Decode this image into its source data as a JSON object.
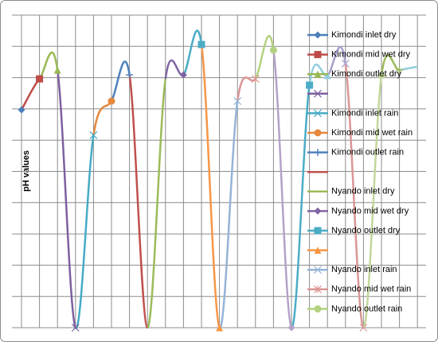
{
  "chart_data": {
    "type": "line",
    "smooth": true,
    "y_label": "pH values",
    "categories": [
      null,
      null,
      null,
      null,
      null,
      null,
      null,
      null,
      null,
      null,
      null,
      null,
      null,
      null,
      null,
      null,
      null,
      null,
      null,
      null,
      null,
      null,
      null
    ],
    "values": [
      6.97,
      7.96,
      8.24,
      0,
      6.16,
      7.25,
      8.09,
      0,
      7.96,
      8.09,
      9.06,
      0,
      7.25,
      7.96,
      8.88,
      0,
      7.76,
      8.07,
      8.45,
      0,
      8.07,
      8.24,
      8.35
    ],
    "point_colors": [
      "#4a7ebb",
      "#be4b48",
      "#98b954",
      "#7d60a0",
      "#46aac5",
      "#e4883f",
      "#4f81bd",
      "#c0504d",
      "#9bbb59",
      "#8064a2",
      "#4bacc6",
      "#f79646",
      "#95b3d7",
      "#d99694",
      "#b3d27f",
      "#b3a2c7",
      "#4bacc6",
      "#93cddd",
      "#a9a0cc",
      "#d99694",
      "#c3d69b",
      "#9bbb59",
      "#93cddd"
    ],
    "legend": [
      "Kimondi inlet dry",
      "Kimondi mid wet dry",
      "Kimondi outlet dry",
      null,
      "Kimondi inlet rain",
      "Kimondi mid wet rain",
      "Kimondi outlet rain",
      null,
      "Nyando inlet dry",
      "Nyando mid wet dry",
      "Nyando outlet dry",
      null,
      "Nyando inlet rain",
      "Nyando mid wet rain",
      "Nyando outlet rain"
    ],
    "ylim": [
      0,
      10
    ],
    "grid_lines": [
      0,
      1,
      2,
      3,
      4,
      5,
      6,
      7,
      8,
      9,
      10
    ]
  }
}
